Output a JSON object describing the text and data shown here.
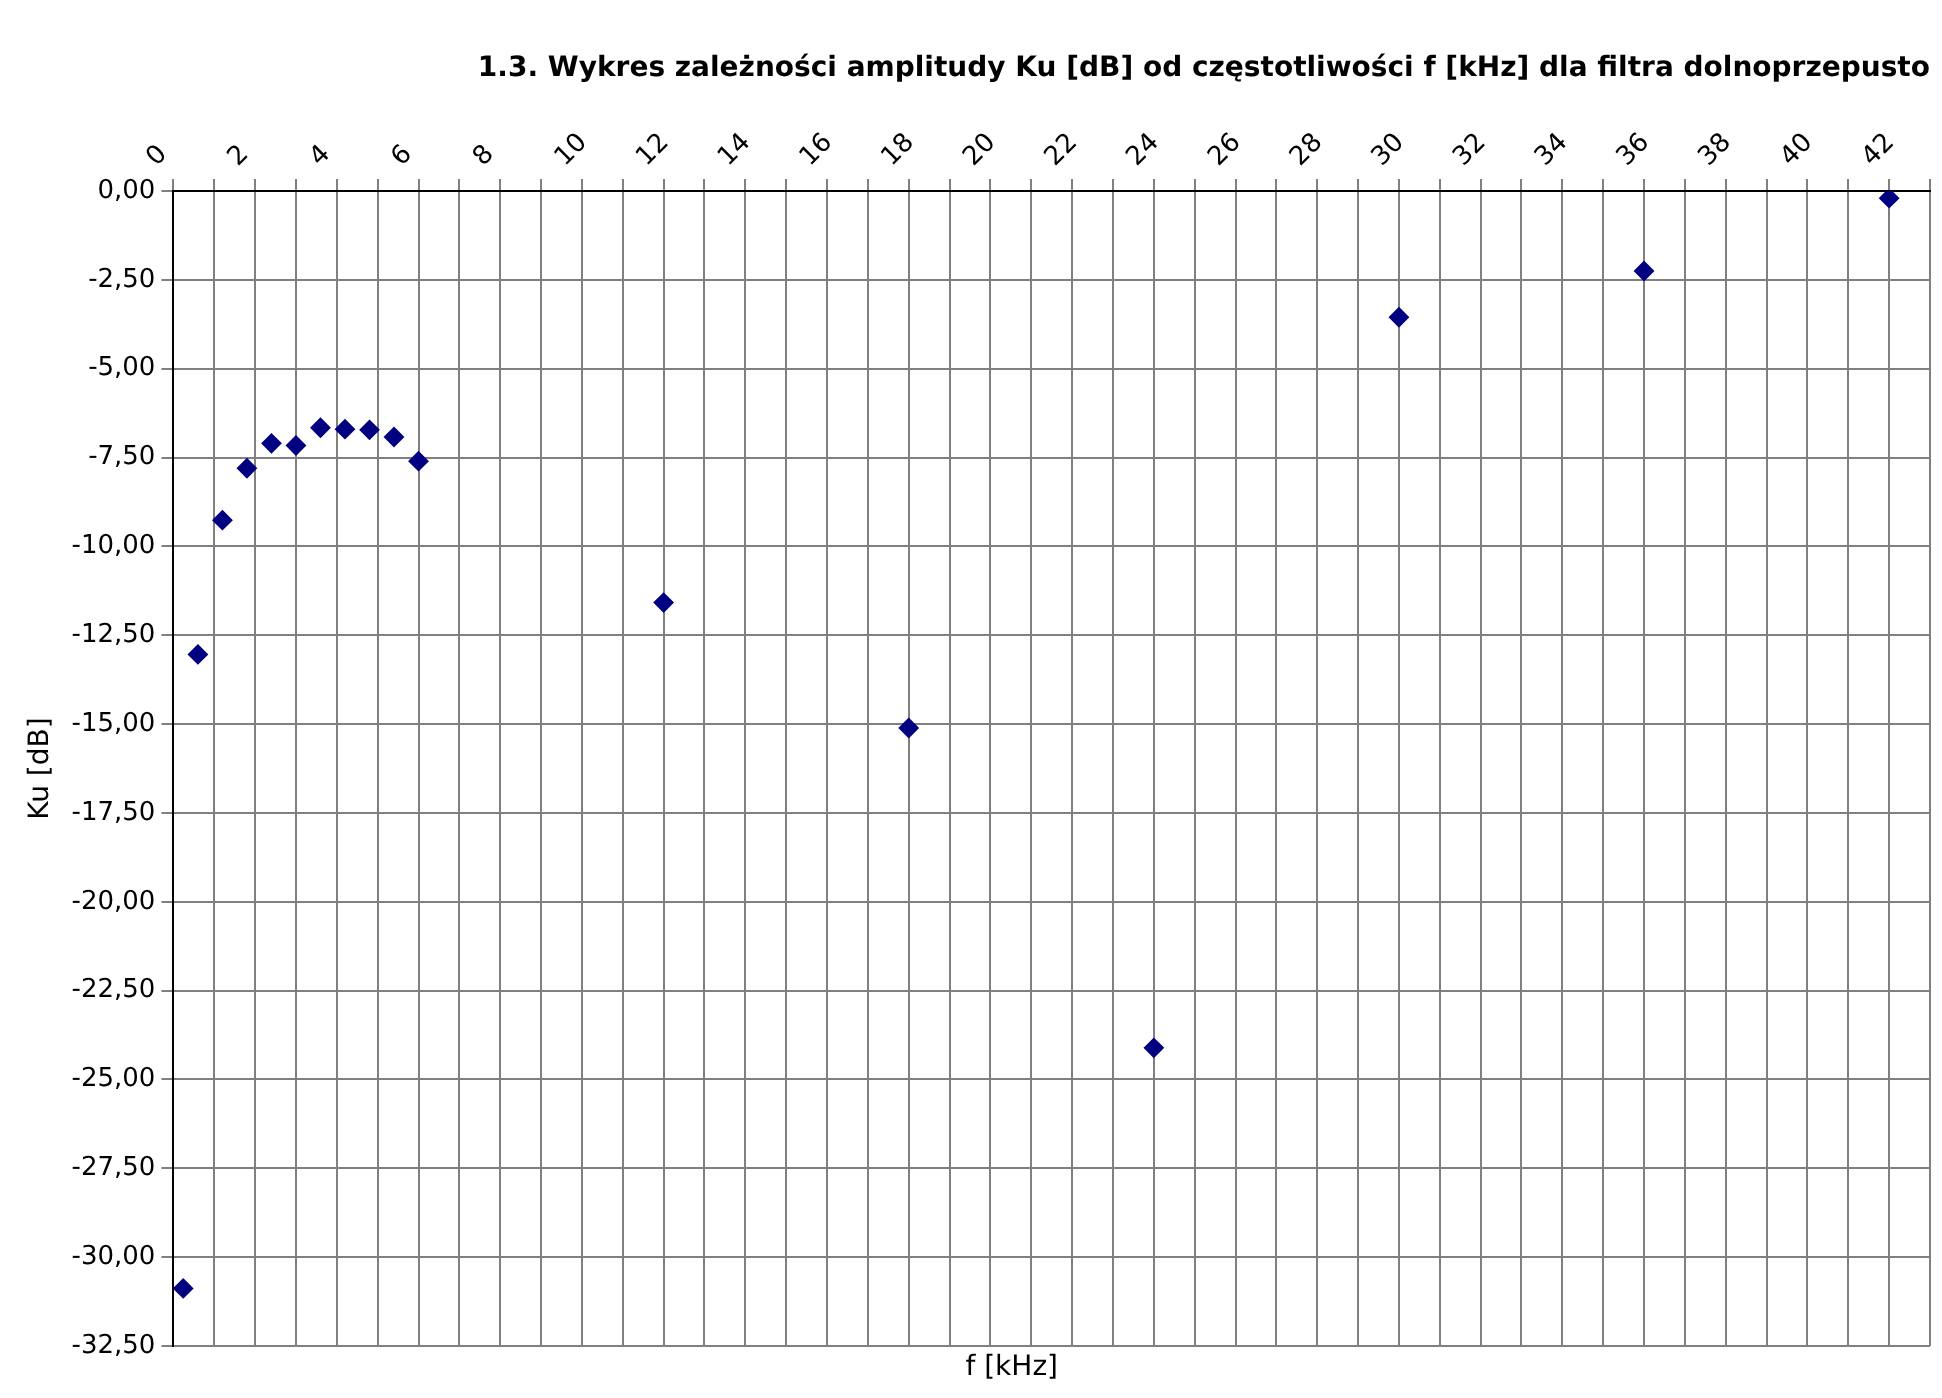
{
  "chart_data": {
    "type": "scatter",
    "title": "1.3. Wykres zależności amplitudy Ku [dB] od częstotliwości f [kHz] dla filtra dolnoprzepusto",
    "xlabel": "f [kHz]",
    "ylabel": "Ku [dB]",
    "x": [
      0.24,
      0.6,
      1.2,
      1.8,
      2.4,
      3.0,
      3.6,
      4.2,
      4.8,
      5.4,
      6.0,
      12,
      18,
      24,
      30,
      36,
      42
    ],
    "series": [
      {
        "color": "#000080",
        "values": [
          -30.88,
          -13.04,
          -9.26,
          -7.8,
          -7.1,
          -7.16,
          -6.66,
          -6.7,
          -6.72,
          -6.92,
          -7.6,
          -11.58,
          -15.11,
          -24.11,
          -3.55,
          -2.25,
          -0.2
        ]
      }
    ],
    "marker": "diamond",
    "grid": true,
    "legend": false,
    "xlim": [
      0,
      43
    ],
    "xticks": [
      0,
      {
        "value": 1,
        "label": null
      },
      2,
      {
        "value": 3,
        "label": null
      },
      4,
      {
        "value": 5,
        "label": null
      },
      6,
      {
        "value": 7,
        "label": null
      },
      8,
      {
        "value": 9,
        "label": null
      },
      10,
      {
        "value": 11,
        "label": null
      },
      12,
      {
        "value": 13,
        "label": null
      },
      14,
      {
        "value": 15,
        "label": null
      },
      16,
      {
        "value": 17,
        "label": null
      },
      18,
      {
        "value": 19,
        "label": null
      },
      20,
      {
        "value": 21,
        "label": null
      },
      22,
      {
        "value": 23,
        "label": null
      },
      24,
      {
        "value": 25,
        "label": null
      },
      26,
      {
        "value": 27,
        "label": null
      },
      28,
      {
        "value": 29,
        "label": null
      },
      30,
      {
        "value": 31,
        "label": null
      },
      32,
      {
        "value": 33,
        "label": null
      },
      34,
      {
        "value": 35,
        "label": null
      },
      36,
      {
        "value": 37,
        "label": null
      },
      38,
      {
        "value": 39,
        "label": null
      },
      40,
      {
        "value": 41,
        "label": null
      },
      42,
      {
        "value": 43,
        "label": null
      }
    ],
    "ylim": [
      -32.5,
      0
    ],
    "yticks": [
      {
        "value": 0,
        "label": "0,00"
      },
      {
        "value": -2.5,
        "label": "-2,50"
      },
      {
        "value": -5,
        "label": "-5,00"
      },
      {
        "value": -7.5,
        "label": "-7,50"
      },
      {
        "value": -10,
        "label": "-10,00"
      },
      {
        "value": -12.5,
        "label": "-12,50"
      },
      {
        "value": -15,
        "label": "-15,00"
      },
      {
        "value": -17.5,
        "label": "-17,50"
      },
      {
        "value": -20,
        "label": "-20,00"
      },
      {
        "value": -22.5,
        "label": "-22,50"
      },
      {
        "value": -25,
        "label": "-25,00"
      },
      {
        "value": -27.5,
        "label": "-27,50"
      },
      {
        "value": -30,
        "label": "-30,00"
      },
      {
        "value": -32.5,
        "label": "-32,50"
      }
    ]
  }
}
